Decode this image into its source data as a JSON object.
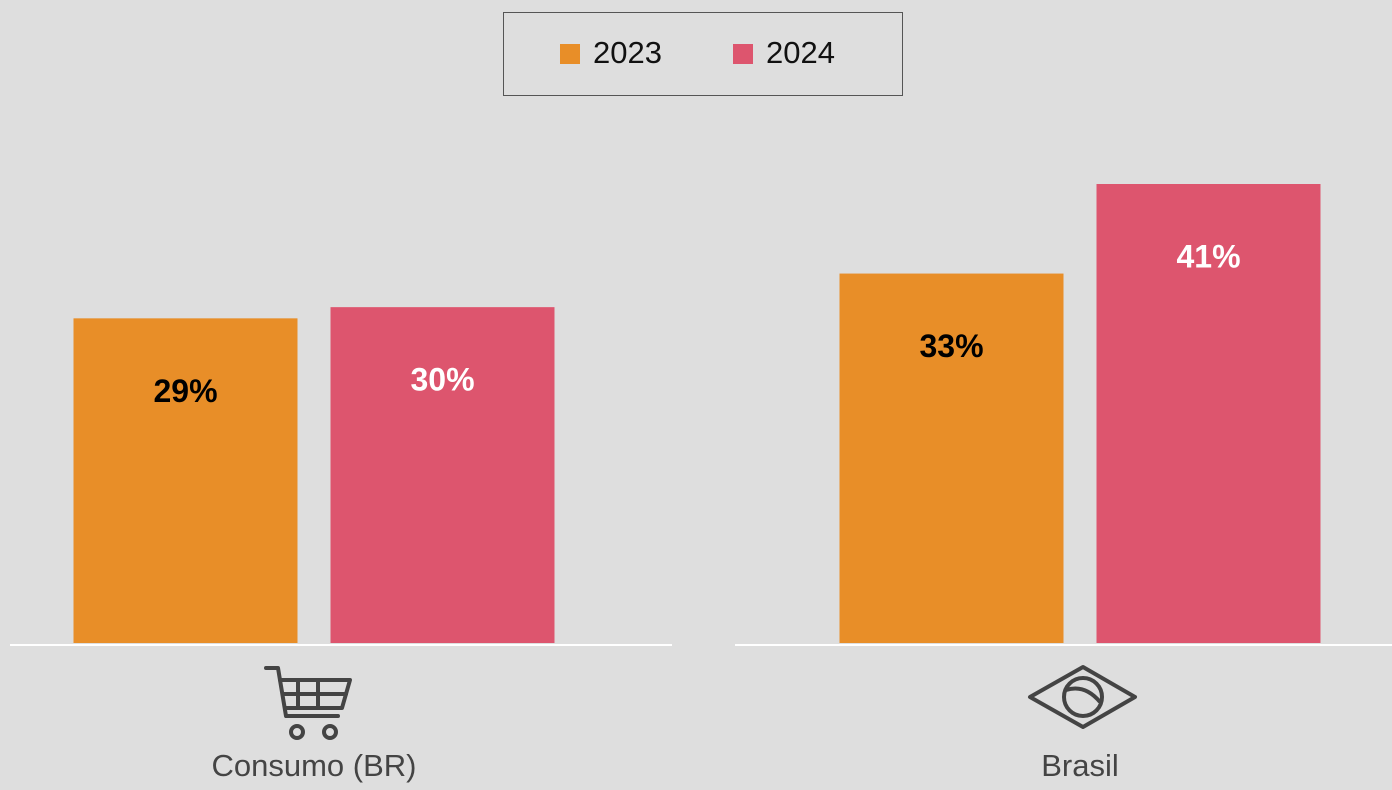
{
  "chart_data": {
    "type": "bar",
    "categories": [
      "Consumo (BR)",
      "Brasil"
    ],
    "series": [
      {
        "name": "2023",
        "color": "#e88e28",
        "label_color": "#000000",
        "values": [
          29,
          33
        ],
        "value_labels": [
          "29%",
          "33%"
        ]
      },
      {
        "name": "2024",
        "color": "#dd556e",
        "label_color": "#ffffff",
        "values": [
          30,
          41
        ],
        "value_labels": [
          "30%",
          "41%"
        ]
      }
    ],
    "legend": "top"
  }
}
